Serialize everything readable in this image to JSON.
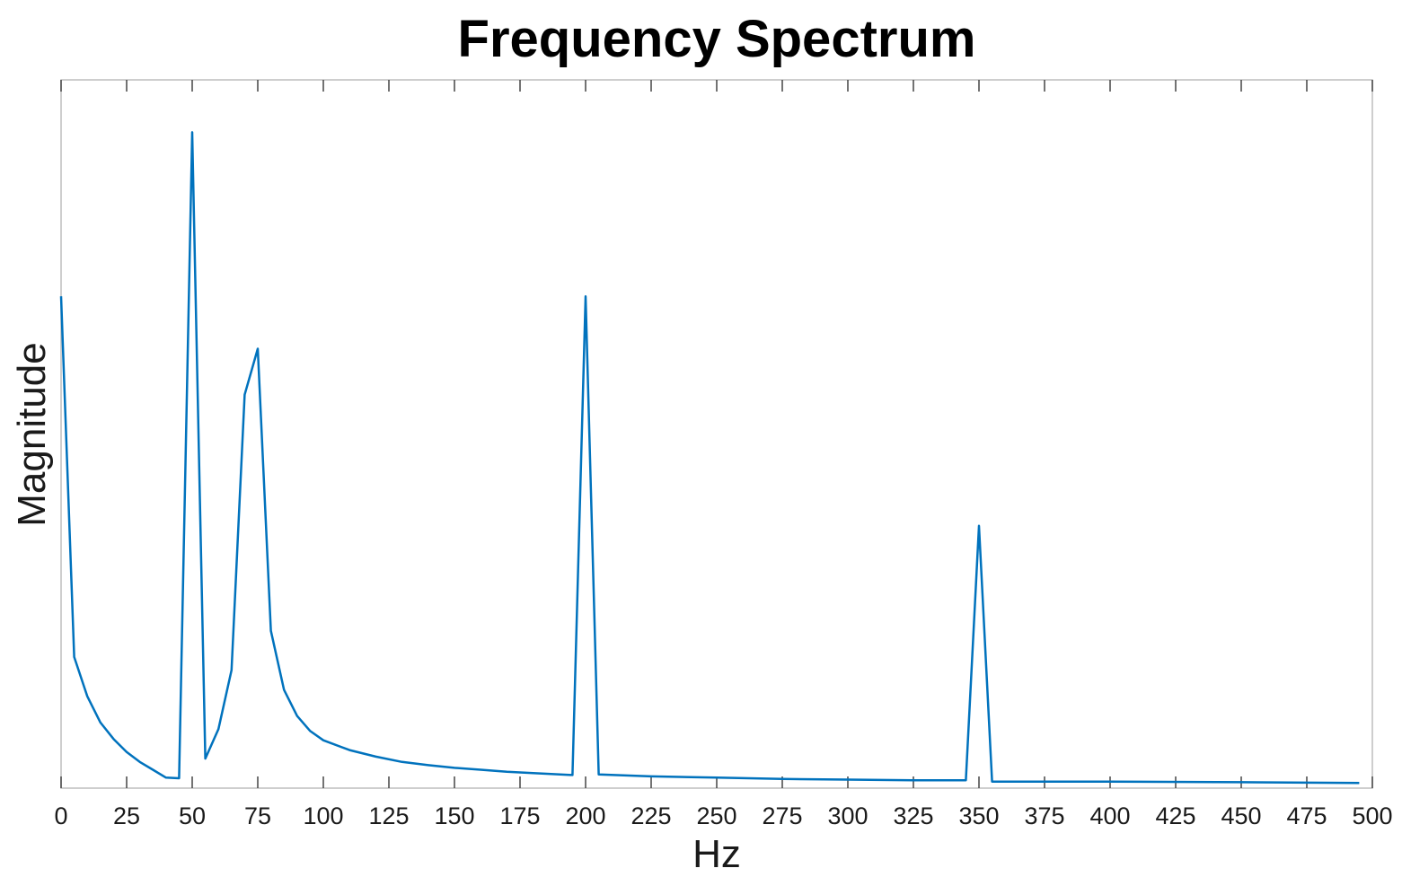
{
  "chart_data": {
    "type": "line",
    "title": "Frequency Spectrum",
    "xlabel": "Hz",
    "ylabel": "Magnitude",
    "xlim": [
      0,
      500
    ],
    "ylim": [
      0,
      1.08
    ],
    "xticks": [
      0,
      25,
      50,
      75,
      100,
      125,
      150,
      175,
      200,
      225,
      250,
      275,
      300,
      325,
      350,
      375,
      400,
      425,
      450,
      475,
      500
    ],
    "xtick_labels": [
      "0",
      "25",
      "50",
      "75",
      "100",
      "125",
      "150",
      "175",
      "200",
      "225",
      "250",
      "275",
      "300",
      "325",
      "350",
      "375",
      "400",
      "425",
      "450",
      "475",
      "500"
    ],
    "yticks_shown": false,
    "grid": false,
    "line_color": "#0072BD",
    "series": [
      {
        "x": [
          0,
          5,
          10,
          15,
          20,
          25,
          30,
          35,
          40,
          45,
          50,
          55,
          60,
          65,
          70,
          75,
          80,
          85,
          90,
          95,
          100,
          110,
          120,
          130,
          140,
          150,
          160,
          170,
          180,
          195,
          200,
          205,
          225,
          250,
          275,
          300,
          325,
          345,
          350,
          355,
          400,
          450,
          495
        ],
        "y": [
          0.75,
          0.2,
          0.14,
          0.1,
          0.075,
          0.055,
          0.04,
          0.028,
          0.016,
          0.015,
          1.0,
          0.045,
          0.09,
          0.18,
          0.6,
          0.67,
          0.24,
          0.15,
          0.11,
          0.087,
          0.073,
          0.058,
          0.048,
          0.04,
          0.035,
          0.031,
          0.028,
          0.025,
          0.023,
          0.02,
          0.75,
          0.021,
          0.018,
          0.016,
          0.014,
          0.013,
          0.012,
          0.012,
          0.4,
          0.01,
          0.01,
          0.009,
          0.008
        ]
      }
    ]
  }
}
